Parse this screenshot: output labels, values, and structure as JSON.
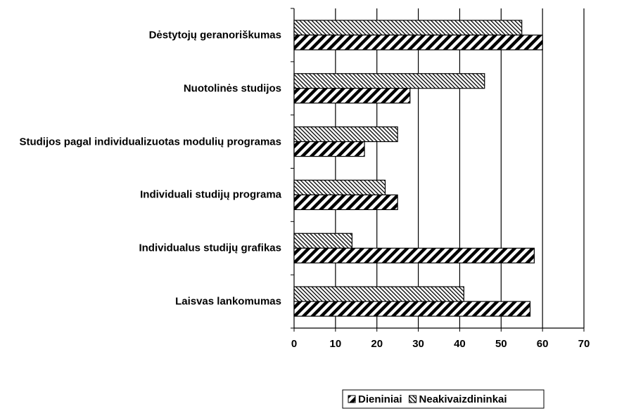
{
  "chart_data": {
    "type": "hbar",
    "categories": [
      "Dėstytojų geranoriškumas",
      "Nuotolinės studijos",
      "Studijos pagal individualizuotas modulių programas",
      "Individuali studijų programa",
      "Individualus studijų grafikas",
      "Laisvas lankomumas"
    ],
    "series": [
      {
        "name": "Dieniniai",
        "color": "#000000",
        "pattern": "hatch",
        "values": [
          60,
          28,
          17,
          25,
          58,
          57
        ]
      },
      {
        "name": "Neakivaizdininkai",
        "color": "#000000",
        "pattern": "dots",
        "values": [
          55,
          46,
          25,
          22,
          14,
          41
        ]
      }
    ],
    "xlim": [
      0,
      70
    ],
    "xticks": [
      0,
      10,
      20,
      30,
      40,
      50,
      60,
      70
    ],
    "grid": true,
    "legend": "bottom"
  }
}
